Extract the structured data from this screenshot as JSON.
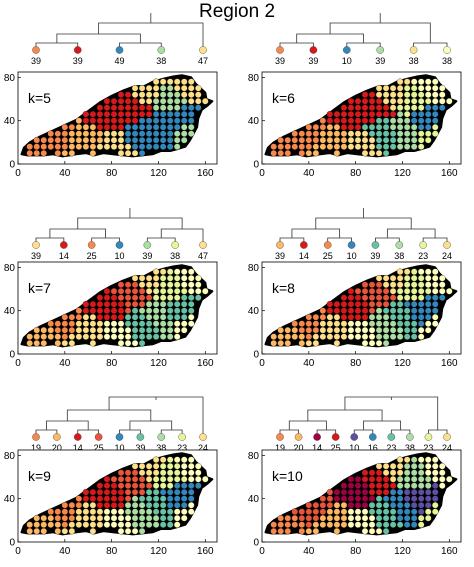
{
  "title": "Region 2",
  "colors": {
    "c1": "#d7191c",
    "c2": "#e8553b",
    "c3": "#f7884c",
    "c4": "#fdb863",
    "c5": "#fee08b",
    "c6": "#ffffbf",
    "c7": "#e6f598",
    "c8": "#abdda4",
    "c9": "#66c2a5",
    "c10": "#3288bd",
    "c11": "#5e4fa2",
    "c12": "#9e0142"
  },
  "chart_data": [
    {
      "type": "scatter",
      "panel_label": "k=5",
      "xlim": [
        0,
        170
      ],
      "ylim": [
        0,
        85
      ],
      "xticks": [
        "0",
        "40",
        "80",
        "120",
        "160"
      ],
      "yticks": [
        "0",
        "40",
        "80"
      ],
      "grid": false,
      "dendrogram_leaves": [
        {
          "label": "39",
          "color": "#f7884c"
        },
        {
          "label": "39",
          "color": "#d7191c"
        },
        {
          "label": "49",
          "color": "#3288bd"
        },
        {
          "label": "38",
          "color": "#abdda4"
        },
        {
          "label": "47",
          "color": "#fee08b"
        }
      ]
    },
    {
      "type": "scatter",
      "panel_label": "k=6",
      "xlim": [
        0,
        170
      ],
      "ylim": [
        0,
        85
      ],
      "xticks": [
        "0",
        "40",
        "80",
        "120",
        "160"
      ],
      "yticks": [
        "0",
        "40",
        "80"
      ],
      "grid": false,
      "dendrogram_leaves": [
        {
          "label": "39",
          "color": "#f7884c"
        },
        {
          "label": "39",
          "color": "#d7191c"
        },
        {
          "label": "10",
          "color": "#3288bd"
        },
        {
          "label": "39",
          "color": "#abdda4"
        },
        {
          "label": "38",
          "color": "#fee08b"
        },
        {
          "label": "38",
          "color": "#ffffbf"
        }
      ]
    },
    {
      "type": "scatter",
      "panel_label": "k=7",
      "xlim": [
        0,
        170
      ],
      "ylim": [
        0,
        85
      ],
      "xticks": [
        "0",
        "40",
        "80",
        "120",
        "160"
      ],
      "yticks": [
        "0",
        "40",
        "80"
      ],
      "grid": false,
      "dendrogram_leaves": [
        {
          "label": "39",
          "color": "#fee08b"
        },
        {
          "label": "14",
          "color": "#d7191c"
        },
        {
          "label": "25",
          "color": "#f7884c"
        },
        {
          "label": "10",
          "color": "#3288bd"
        },
        {
          "label": "39",
          "color": "#abdda4"
        },
        {
          "label": "38",
          "color": "#e6f598"
        },
        {
          "label": "47",
          "color": "#fee08b"
        }
      ]
    },
    {
      "type": "scatter",
      "panel_label": "k=8",
      "xlim": [
        0,
        170
      ],
      "ylim": [
        0,
        85
      ],
      "xticks": [
        "0",
        "40",
        "80",
        "120",
        "160"
      ],
      "yticks": [
        "0",
        "40",
        "80"
      ],
      "grid": false,
      "dendrogram_leaves": [
        {
          "label": "39",
          "color": "#fdb863"
        },
        {
          "label": "14",
          "color": "#d7191c"
        },
        {
          "label": "25",
          "color": "#f7884c"
        },
        {
          "label": "10",
          "color": "#3288bd"
        },
        {
          "label": "39",
          "color": "#66c2a5"
        },
        {
          "label": "38",
          "color": "#abdda4"
        },
        {
          "label": "23",
          "color": "#e6f598"
        },
        {
          "label": "24",
          "color": "#fee08b"
        }
      ]
    },
    {
      "type": "scatter",
      "panel_label": "k=9",
      "xlim": [
        0,
        170
      ],
      "ylim": [
        0,
        85
      ],
      "xticks": [
        "0",
        "40",
        "80",
        "120",
        "160"
      ],
      "yticks": [
        "0",
        "40",
        "80"
      ],
      "grid": false,
      "dendrogram_leaves": [
        {
          "label": "19",
          "color": "#f7884c"
        },
        {
          "label": "20",
          "color": "#fdb863"
        },
        {
          "label": "14",
          "color": "#d7191c"
        },
        {
          "label": "25",
          "color": "#e8553b"
        },
        {
          "label": "10",
          "color": "#3288bd"
        },
        {
          "label": "39",
          "color": "#66c2a5"
        },
        {
          "label": "38",
          "color": "#abdda4"
        },
        {
          "label": "23",
          "color": "#e6f598"
        },
        {
          "label": "24",
          "color": "#fee08b"
        }
      ]
    },
    {
      "type": "scatter",
      "panel_label": "k=10",
      "xlim": [
        0,
        170
      ],
      "ylim": [
        0,
        85
      ],
      "xticks": [
        "0",
        "40",
        "80",
        "120",
        "160"
      ],
      "yticks": [
        "0",
        "40",
        "80"
      ],
      "grid": false,
      "dendrogram_leaves": [
        {
          "label": "19",
          "color": "#f7884c"
        },
        {
          "label": "20",
          "color": "#fdb863"
        },
        {
          "label": "14",
          "color": "#9e0142"
        },
        {
          "label": "25",
          "color": "#d7191c"
        },
        {
          "label": "10",
          "color": "#5e4fa2"
        },
        {
          "label": "16",
          "color": "#3288bd"
        },
        {
          "label": "23",
          "color": "#66c2a5"
        },
        {
          "label": "38",
          "color": "#abdda4"
        },
        {
          "label": "23",
          "color": "#e6f598"
        },
        {
          "label": "24",
          "color": "#fee08b"
        }
      ]
    }
  ]
}
